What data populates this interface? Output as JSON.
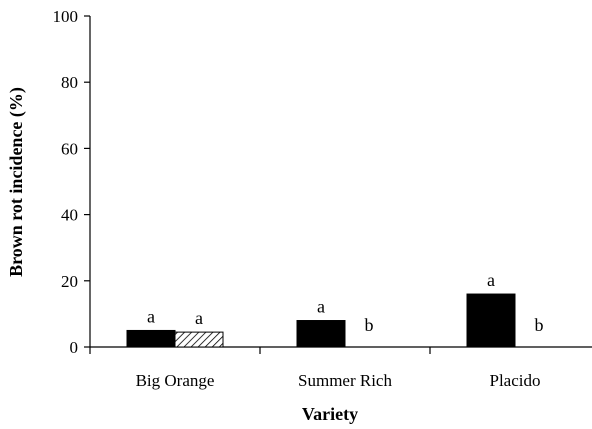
{
  "chart_data": {
    "type": "bar",
    "xlabel": "Variety",
    "ylabel": "Brown rot incidence (%)",
    "ylim": [
      0,
      100
    ],
    "yticks": [
      0,
      20,
      40,
      60,
      80,
      100
    ],
    "categories": [
      "Big Orange",
      "Summer Rich",
      "Placido"
    ],
    "grid": false,
    "legend": "none",
    "series": [
      {
        "values": [
          5,
          8,
          16
        ],
        "letters": [
          "a",
          "a",
          "a"
        ],
        "fill": "solid-black",
        "color": "#000000"
      },
      {
        "values": [
          4.5,
          0,
          0
        ],
        "letters": [
          "a",
          "b",
          "b"
        ],
        "fill": "diagonal-hatch",
        "color": "#000000"
      }
    ]
  }
}
